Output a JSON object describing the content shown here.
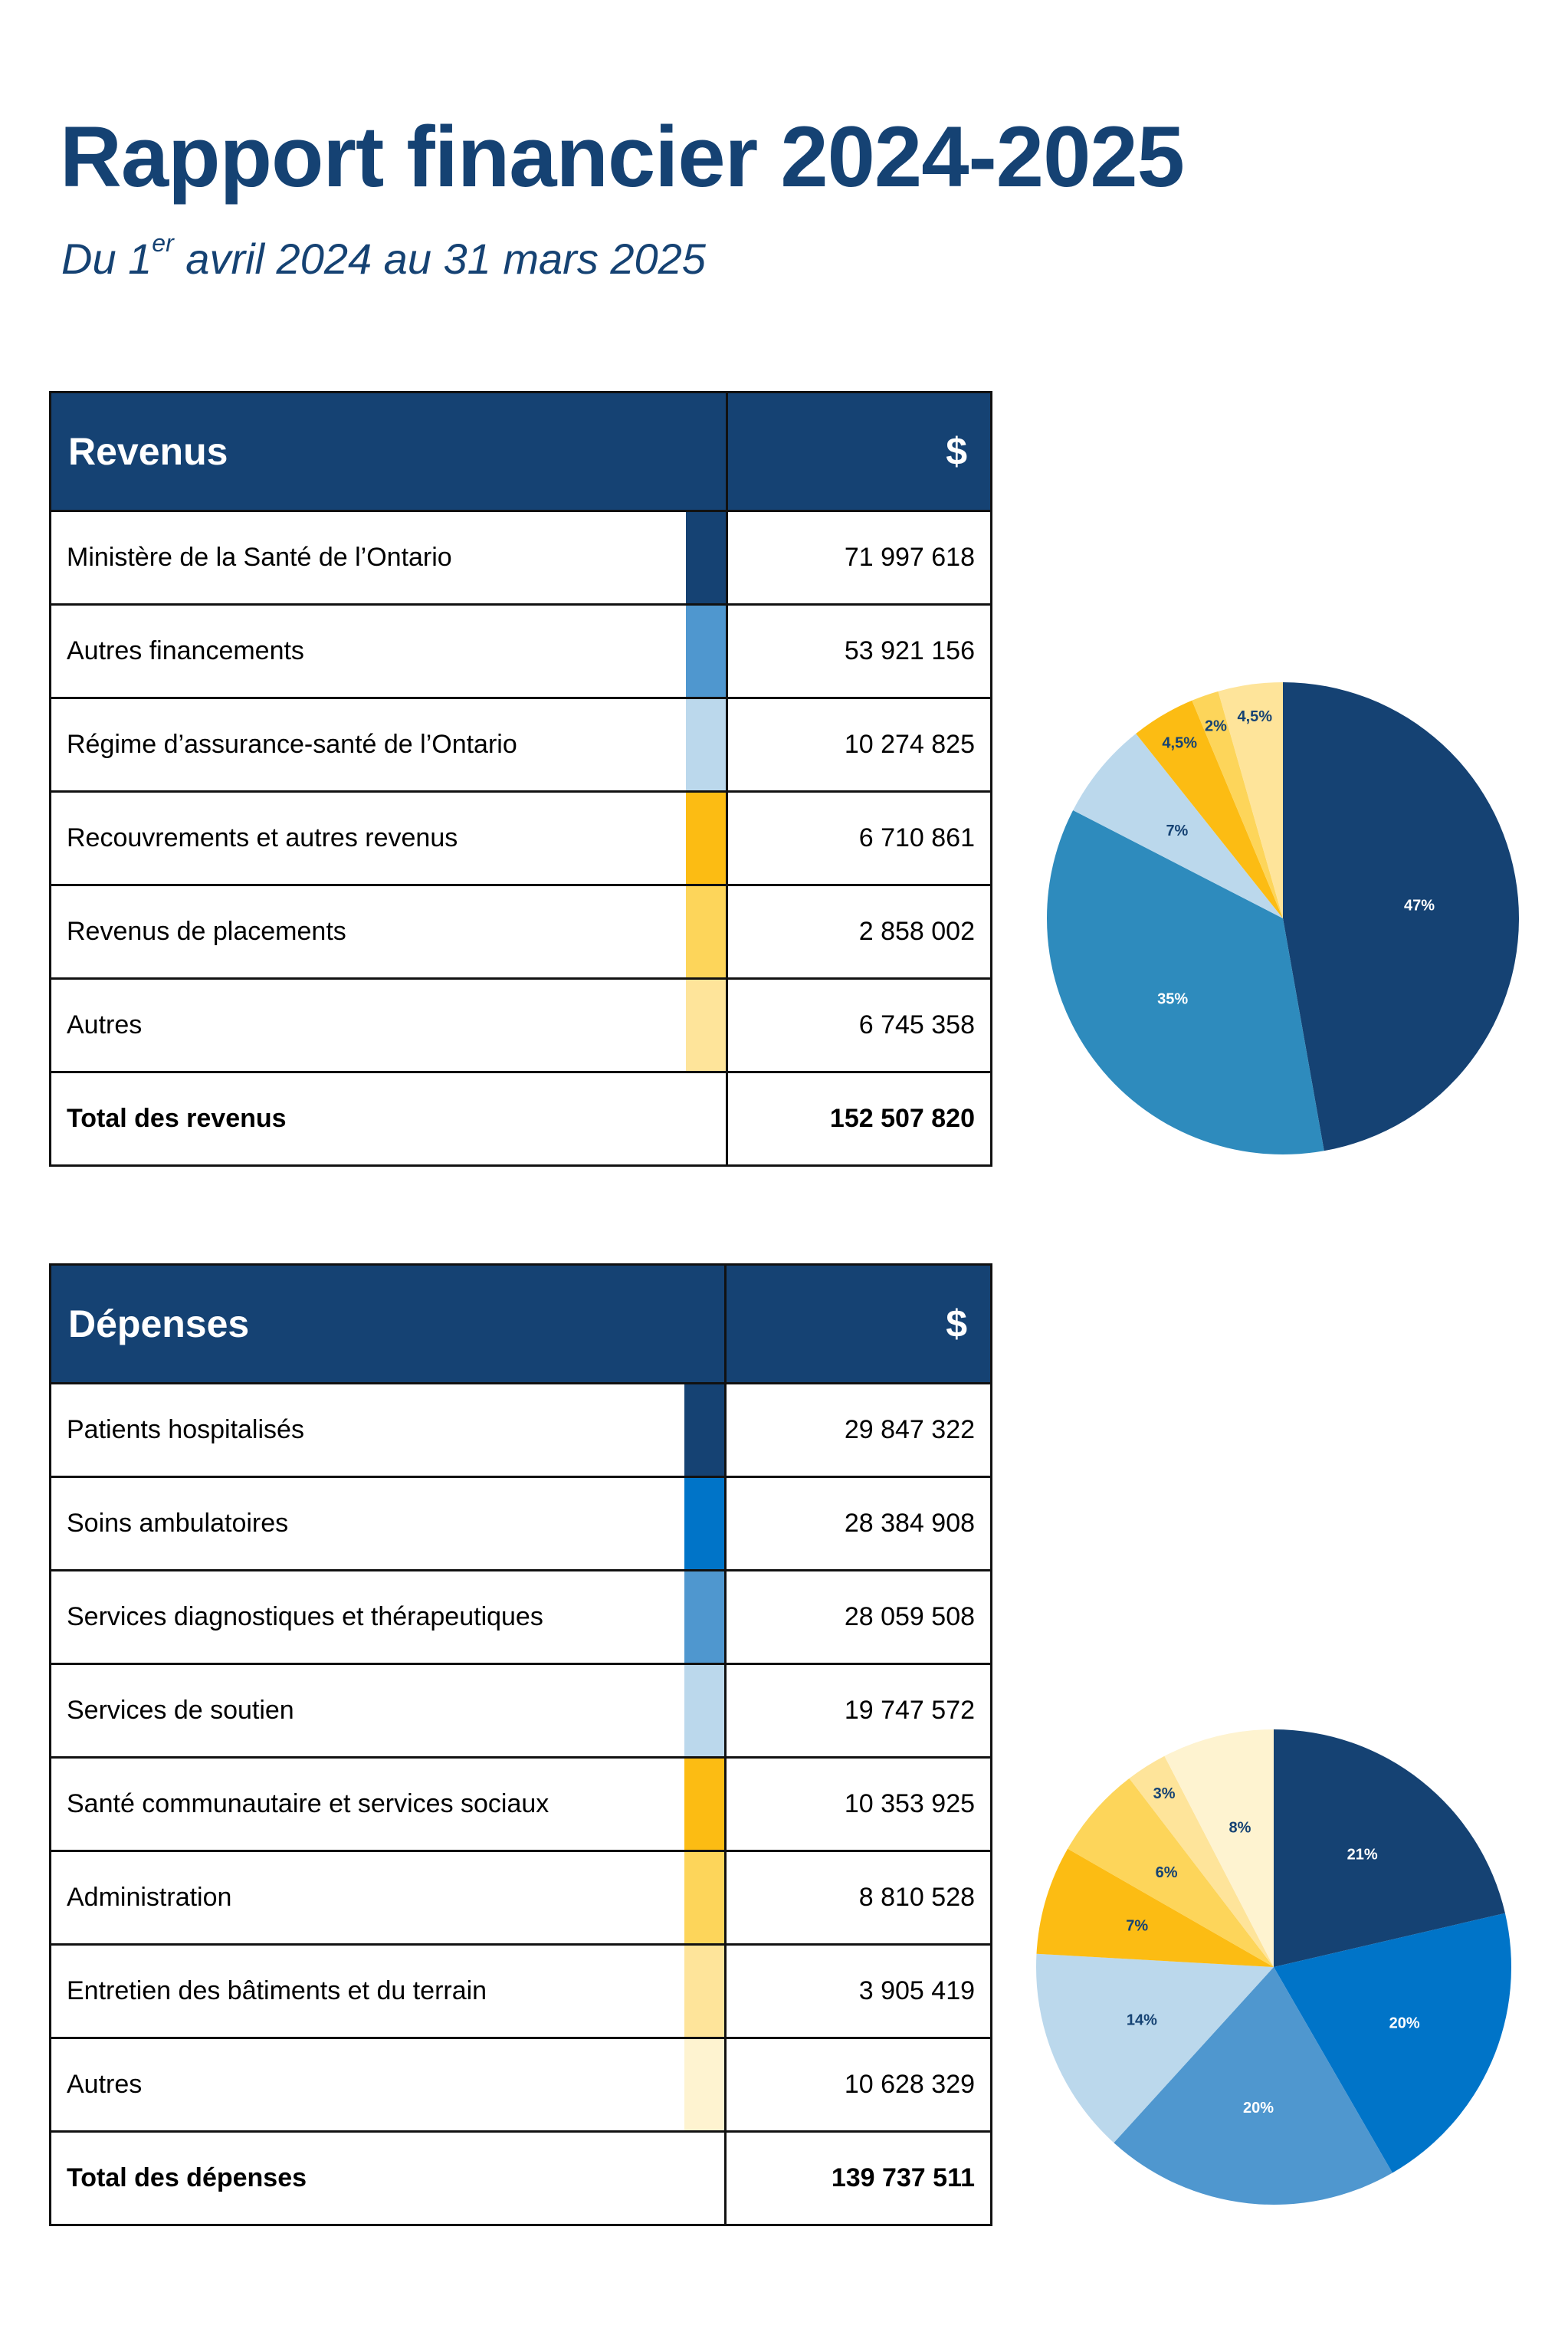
{
  "header": {
    "title": "Rapport financier 2024-2025",
    "subtitle_prefix": "Du 1",
    "subtitle_sup": "er",
    "subtitle_suffix": " avril 2024 au 31 mars 2025"
  },
  "revenue": {
    "heading": "Revenus",
    "currency": "$",
    "rows": [
      {
        "label": "Ministère de la Santé de l’Ontario",
        "amount": "71 997 618",
        "color": "#154273"
      },
      {
        "label": "Autres financements",
        "amount": "53 921 156",
        "color": "#4f97cf"
      },
      {
        "label": "Régime d’assurance-santé de l’Ontario",
        "amount": "10 274 825",
        "color": "#bbd8ec"
      },
      {
        "label": "Recouvrements et autres revenus",
        "amount": "6 710 861",
        "color": "#fcbc13"
      },
      {
        "label": "Revenus de placements",
        "amount": "2 858 002",
        "color": "#fdd55a"
      },
      {
        "label": "Autres",
        "amount": "6 745 358",
        "color": "#fee49a"
      }
    ],
    "total_label": "Total des revenus",
    "total_amount": "152 507 820"
  },
  "expenses": {
    "heading": "Dépenses",
    "currency": "$",
    "rows": [
      {
        "label": "Patients hospitalisés",
        "amount": "29 847 322",
        "color": "#154273"
      },
      {
        "label": "Soins ambulatoires",
        "amount": "28 384 908",
        "color": "#0074c8"
      },
      {
        "label": "Services diagnostiques et thérapeutiques",
        "amount": "28 059 508",
        "color": "#4f97cf"
      },
      {
        "label": "Services de soutien",
        "amount": "19 747 572",
        "color": "#bbd8ec"
      },
      {
        "label": "Santé communautaire et services sociaux",
        "amount": "10 353 925",
        "color": "#fcbc13"
      },
      {
        "label": "Administration",
        "amount": "8 810 528",
        "color": "#fdd55a"
      },
      {
        "label": "Entretien des bâtiments et du terrain",
        "amount": "3 905 419",
        "color": "#fee49a"
      },
      {
        "label": "Autres",
        "amount": "10 628 329",
        "color": "#fef3d0"
      }
    ],
    "total_label": "Total des dépenses",
    "total_amount": "139 737 511"
  },
  "chart_data": [
    {
      "type": "pie",
      "slices": [
        {
          "label": "47%",
          "value": 71997618,
          "color": "#154273",
          "label_color": "#ffffff"
        },
        {
          "label": "35%",
          "value": 53921156,
          "color": "#2e8bbd",
          "label_color": "#ffffff"
        },
        {
          "label": "7%",
          "value": 10274825,
          "color": "#bbd8ec",
          "label_color": "#154273"
        },
        {
          "label": "4,5%",
          "value": 6710861,
          "color": "#fcbc13",
          "label_color": "#154273"
        },
        {
          "label": "2%",
          "value": 2858002,
          "color": "#fdd55a",
          "label_color": "#154273"
        },
        {
          "label": "4,5%",
          "value": 6745358,
          "color": "#fee49a",
          "label_color": "#154273"
        }
      ]
    },
    {
      "type": "pie",
      "slices": [
        {
          "label": "21%",
          "value": 29847322,
          "color": "#154273",
          "label_color": "#ffffff"
        },
        {
          "label": "20%",
          "value": 28384908,
          "color": "#0074c8",
          "label_color": "#ffffff"
        },
        {
          "label": "20%",
          "value": 28059508,
          "color": "#4f97cf",
          "label_color": "#ffffff"
        },
        {
          "label": "14%",
          "value": 19747572,
          "color": "#bbd8ec",
          "label_color": "#154273"
        },
        {
          "label": "7%",
          "value": 10353925,
          "color": "#fcbc13",
          "label_color": "#154273"
        },
        {
          "label": "6%",
          "value": 8810528,
          "color": "#fdd55a",
          "label_color": "#154273"
        },
        {
          "label": "3%",
          "value": 3905419,
          "color": "#fee49a",
          "label_color": "#154273"
        },
        {
          "label": "8%",
          "value": 10628329,
          "color": "#fef3d0",
          "label_color": "#154273"
        }
      ]
    }
  ]
}
